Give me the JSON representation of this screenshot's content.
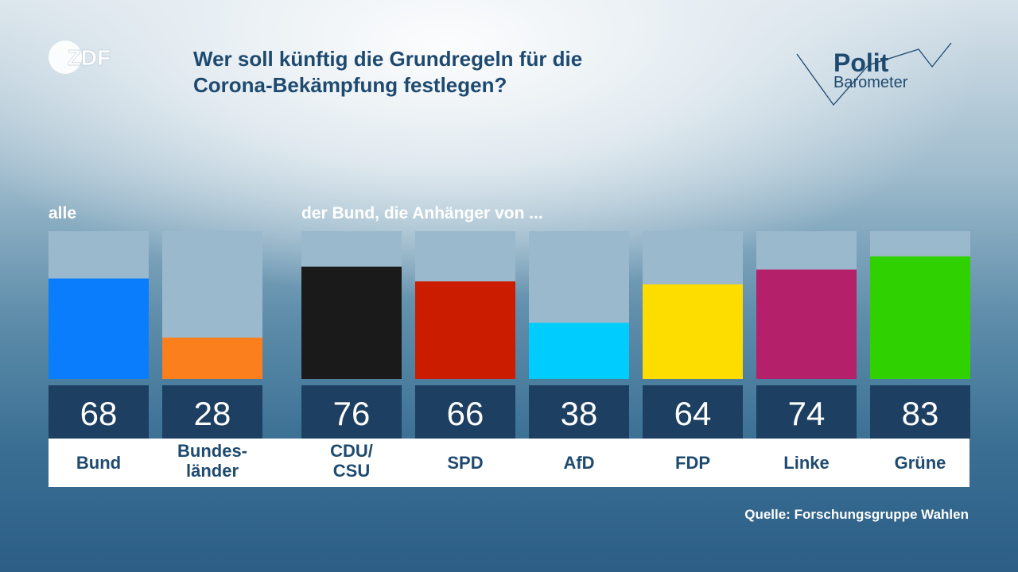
{
  "header": {
    "logo_text": "ZDF",
    "title_line1": "Wer soll künftig die Grundregeln für die",
    "title_line2": "Corona-Bekämpfung festlegen?",
    "brand_line1": "Polit",
    "brand_line2": "Barometer"
  },
  "groups": {
    "all_label": "alle",
    "party_label": "der Bund, die Anhänger von ..."
  },
  "chart_data": {
    "type": "bar",
    "title": "Wer soll künftig die Grundregeln für die Corona-Bekämpfung festlegen?",
    "xlabel": "",
    "ylabel": "",
    "ylim": [
      0,
      100
    ],
    "grid": false,
    "legend": "none",
    "bars": [
      {
        "label": "Bund",
        "lines": [
          "Bund"
        ],
        "value": 68,
        "color": "#0a7dfc",
        "group": "alle"
      },
      {
        "label": "Bundesländer",
        "lines": [
          "Bundes-",
          "länder"
        ],
        "value": 28,
        "color": "#fb7f1d",
        "group": "alle"
      },
      {
        "label": "CDU/CSU",
        "lines": [
          "CDU/",
          "CSU"
        ],
        "value": 76,
        "color": "#1a1a1a",
        "group": "der Bund, die Anhänger von ..."
      },
      {
        "label": "SPD",
        "lines": [
          "SPD"
        ],
        "value": 66,
        "color": "#cc1c00",
        "group": "der Bund, die Anhänger von ..."
      },
      {
        "label": "AfD",
        "lines": [
          "AfD"
        ],
        "value": 38,
        "color": "#00cdfd",
        "group": "der Bund, die Anhänger von ..."
      },
      {
        "label": "FDP",
        "lines": [
          "FDP"
        ],
        "value": 64,
        "color": "#fddc00",
        "group": "der Bund, die Anhänger von ..."
      },
      {
        "label": "Linke",
        "lines": [
          "Linke"
        ],
        "value": 74,
        "color": "#b5206a",
        "group": "der Bund, die Anhänger von ..."
      },
      {
        "label": "Grüne",
        "lines": [
          "Grüne"
        ],
        "value": 83,
        "color": "#2fd100",
        "group": "der Bund, die Anhänger von ..."
      }
    ],
    "track_color": "#9bb9cc",
    "value_box_color": "#1c3f62",
    "label_color": "#1e4a70"
  },
  "footer": {
    "source": "Quelle: Forschungsgruppe Wahlen"
  }
}
